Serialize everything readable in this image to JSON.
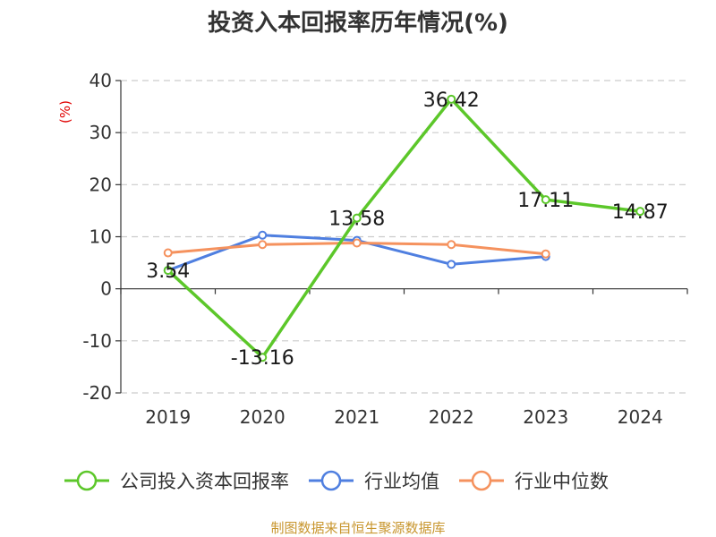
{
  "chart_data": {
    "type": "line",
    "title": "投资入本回报率历年情况(%)",
    "ylabel": "(%)",
    "categories": [
      "2019",
      "2020",
      "2021",
      "2022",
      "2023",
      "2024"
    ],
    "ylim": [
      -20,
      40
    ],
    "yticks": [
      "-20",
      "-10",
      "0",
      "10",
      "20",
      "30",
      "40"
    ],
    "grid": true,
    "legend_position": "bottom",
    "series": [
      {
        "name": "公司投入资本回报率",
        "color": "#5cc72a",
        "values": [
          3.54,
          -13.16,
          13.58,
          36.42,
          17.11,
          14.87
        ],
        "labels": [
          "3.54",
          "-13.16",
          "13.58",
          "36.42",
          "17.11",
          "14.87"
        ]
      },
      {
        "name": "行业均值",
        "color": "#4f7fe0",
        "values": [
          3.54,
          10.3,
          9.3,
          4.7,
          6.2,
          null
        ]
      },
      {
        "name": "行业中位数",
        "color": "#f5925e",
        "values": [
          6.9,
          8.5,
          8.8,
          8.5,
          6.7,
          null
        ]
      }
    ]
  },
  "source": "制图数据来自恒生聚源数据库"
}
